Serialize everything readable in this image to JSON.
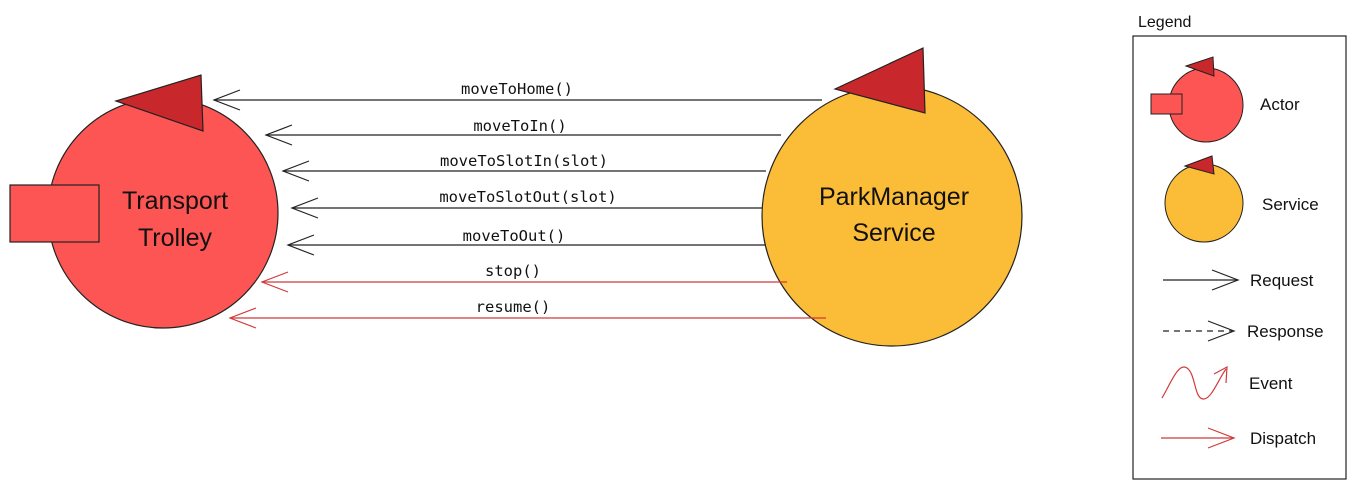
{
  "diagram": {
    "actor": {
      "line1": "Transport",
      "line2": "Trolley",
      "kind": "Actor",
      "fill_color": "#fc5553",
      "flag_color": "#c8282c"
    },
    "service": {
      "line1": "ParkManager",
      "line2": "Service",
      "kind": "Service",
      "fill_color": "#fbbd37",
      "flag_color": "#c8282c"
    },
    "messages": [
      {
        "label": "moveToHome()",
        "type": "Request"
      },
      {
        "label": "moveToIn()",
        "type": "Request"
      },
      {
        "label": "moveToSlotIn(slot)",
        "type": "Request"
      },
      {
        "label": "moveToSlotOut(slot)",
        "type": "Request"
      },
      {
        "label": "moveToOut()",
        "type": "Request"
      },
      {
        "label": "stop()",
        "type": "Dispatch"
      },
      {
        "label": "resume()",
        "type": "Dispatch"
      }
    ],
    "colors": {
      "request": "#222222",
      "dispatch": "#d23a3a",
      "outline": "#222222"
    }
  },
  "legend": {
    "title": "Legend",
    "items": [
      {
        "label": "Actor"
      },
      {
        "label": "Service"
      },
      {
        "label": "Request"
      },
      {
        "label": "Response"
      },
      {
        "label": "Event"
      },
      {
        "label": "Dispatch"
      }
    ]
  }
}
